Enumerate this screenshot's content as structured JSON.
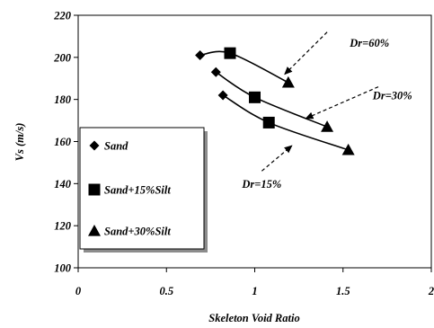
{
  "chart_data": {
    "type": "scatter",
    "xlabel": "Skeleton Void Ratio",
    "ylabel": "Vs (m/s)",
    "xlim": [
      0,
      2
    ],
    "ylim": [
      100,
      220
    ],
    "x_ticks": [
      0,
      0.5,
      1,
      1.5,
      2
    ],
    "x_tick_labels": [
      "0",
      "0.5",
      "1",
      "1.5",
      "2"
    ],
    "y_ticks": [
      100,
      120,
      140,
      160,
      180,
      200,
      220
    ],
    "y_tick_labels": [
      "100",
      "120",
      "140",
      "160",
      "180",
      "200",
      "220"
    ],
    "grid": false,
    "legend_position": "left",
    "series": [
      {
        "name": "Sand",
        "marker": "diamond",
        "points": [
          [
            0.69,
            201
          ],
          [
            0.78,
            193
          ],
          [
            0.82,
            182
          ]
        ]
      },
      {
        "name": "Sand+15%Silt",
        "marker": "square",
        "points": [
          [
            0.86,
            202
          ],
          [
            1.0,
            181
          ],
          [
            1.08,
            169
          ]
        ]
      },
      {
        "name": "Sand+30%Silt",
        "marker": "triangle",
        "points": [
          [
            1.19,
            188
          ],
          [
            1.41,
            167
          ],
          [
            1.53,
            156
          ]
        ]
      }
    ],
    "curves": [
      {
        "label": "Dr=60%",
        "points": [
          [
            0.69,
            201
          ],
          [
            0.86,
            202
          ],
          [
            1.19,
            188
          ]
        ]
      },
      {
        "label": "Dr=30%",
        "points": [
          [
            0.78,
            193
          ],
          [
            1.0,
            181
          ],
          [
            1.41,
            167
          ]
        ]
      },
      {
        "label": "Dr=15%",
        "points": [
          [
            0.82,
            182
          ],
          [
            1.08,
            169
          ],
          [
            1.53,
            156
          ]
        ]
      }
    ],
    "annotations": [
      {
        "text": "Dr=60%",
        "label_at": [
          1.65,
          205
        ],
        "arrow_from": [
          1.41,
          212
        ],
        "arrow_to": [
          1.17,
          192
        ]
      },
      {
        "text": "Dr=30%",
        "label_at": [
          1.78,
          180
        ],
        "arrow_from": [
          1.7,
          186
        ],
        "arrow_to": [
          1.29,
          171
        ]
      },
      {
        "text": "Dr=15%",
        "label_at": [
          1.04,
          138
        ],
        "arrow_from": [
          1.04,
          146
        ],
        "arrow_to": [
          1.21,
          158
        ]
      }
    ]
  }
}
